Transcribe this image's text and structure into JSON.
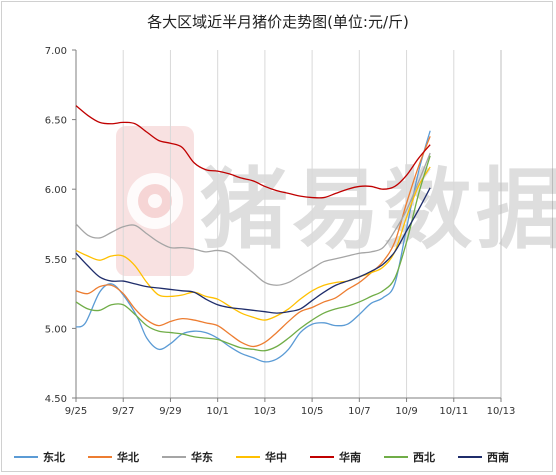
{
  "chart_data": {
    "type": "line",
    "title": "各大区域近半月猪价走势图(单位:元/斤)",
    "watermark": "猪易数据",
    "xlabel": "",
    "ylabel": "",
    "x_ticks": [
      "9/25",
      "9/27",
      "9/29",
      "10/1",
      "10/3",
      "10/5",
      "10/7",
      "10/9",
      "10/11",
      "10/13"
    ],
    "y_ticks": [
      "4.50",
      "5.00",
      "5.50",
      "6.00",
      "6.50",
      "7.00"
    ],
    "ylim": [
      4.5,
      7.0
    ],
    "grid": "vertical",
    "legend_position": "bottom",
    "series": [
      {
        "name": "东北",
        "color": "#5B9BD5",
        "points": [
          [
            0,
            5.01
          ],
          [
            0.4,
            5.04
          ],
          [
            1,
            5.26
          ],
          [
            1.5,
            5.32
          ],
          [
            2,
            5.24
          ],
          [
            2.6,
            5.08
          ],
          [
            3,
            4.93
          ],
          [
            3.5,
            4.85
          ],
          [
            4,
            4.89
          ],
          [
            4.5,
            4.96
          ],
          [
            5,
            4.98
          ],
          [
            5.5,
            4.97
          ],
          [
            6,
            4.93
          ],
          [
            6.5,
            4.87
          ],
          [
            7,
            4.82
          ],
          [
            7.5,
            4.79
          ],
          [
            8,
            4.76
          ],
          [
            8.5,
            4.78
          ],
          [
            9,
            4.85
          ],
          [
            9.5,
            4.97
          ],
          [
            10,
            5.03
          ],
          [
            10.5,
            5.04
          ],
          [
            11,
            5.02
          ],
          [
            11.5,
            5.03
          ],
          [
            12,
            5.1
          ],
          [
            12.5,
            5.18
          ],
          [
            13,
            5.22
          ],
          [
            13.5,
            5.32
          ],
          [
            14,
            5.72
          ],
          [
            14.5,
            6.12
          ],
          [
            15,
            6.42
          ]
        ]
      },
      {
        "name": "华北",
        "color": "#ED7D31",
        "points": [
          [
            0,
            5.27
          ],
          [
            0.5,
            5.25
          ],
          [
            1,
            5.3
          ],
          [
            1.5,
            5.31
          ],
          [
            2,
            5.25
          ],
          [
            2.5,
            5.14
          ],
          [
            3,
            5.06
          ],
          [
            3.5,
            5.02
          ],
          [
            4,
            5.05
          ],
          [
            4.5,
            5.07
          ],
          [
            5,
            5.06
          ],
          [
            5.5,
            5.04
          ],
          [
            6,
            5.02
          ],
          [
            6.5,
            4.96
          ],
          [
            7,
            4.9
          ],
          [
            7.5,
            4.87
          ],
          [
            8,
            4.9
          ],
          [
            8.5,
            4.97
          ],
          [
            9,
            5.05
          ],
          [
            9.5,
            5.12
          ],
          [
            10,
            5.15
          ],
          [
            10.5,
            5.19
          ],
          [
            11,
            5.22
          ],
          [
            11.5,
            5.28
          ],
          [
            12,
            5.33
          ],
          [
            12.5,
            5.4
          ],
          [
            13,
            5.48
          ],
          [
            13.5,
            5.62
          ],
          [
            14,
            5.9
          ],
          [
            14.5,
            6.16
          ],
          [
            15,
            6.38
          ]
        ]
      },
      {
        "name": "华东",
        "color": "#A5A5A5",
        "points": [
          [
            0,
            5.75
          ],
          [
            0.5,
            5.67
          ],
          [
            1,
            5.65
          ],
          [
            1.5,
            5.69
          ],
          [
            2,
            5.73
          ],
          [
            2.5,
            5.74
          ],
          [
            3,
            5.68
          ],
          [
            3.5,
            5.62
          ],
          [
            4,
            5.58
          ],
          [
            4.5,
            5.58
          ],
          [
            5,
            5.57
          ],
          [
            5.5,
            5.55
          ],
          [
            6,
            5.56
          ],
          [
            6.5,
            5.54
          ],
          [
            7,
            5.47
          ],
          [
            7.5,
            5.4
          ],
          [
            8,
            5.33
          ],
          [
            8.5,
            5.31
          ],
          [
            9,
            5.33
          ],
          [
            9.5,
            5.38
          ],
          [
            10,
            5.43
          ],
          [
            10.5,
            5.48
          ],
          [
            11,
            5.5
          ],
          [
            11.5,
            5.52
          ],
          [
            12,
            5.54
          ],
          [
            12.5,
            5.55
          ],
          [
            13,
            5.58
          ],
          [
            13.5,
            5.7
          ],
          [
            14,
            5.85
          ],
          [
            14.5,
            6.05
          ],
          [
            15,
            6.26
          ]
        ]
      },
      {
        "name": "华中",
        "color": "#FFC000",
        "points": [
          [
            0,
            5.56
          ],
          [
            0.5,
            5.52
          ],
          [
            1,
            5.49
          ],
          [
            1.5,
            5.52
          ],
          [
            2,
            5.52
          ],
          [
            2.5,
            5.45
          ],
          [
            3,
            5.33
          ],
          [
            3.5,
            5.24
          ],
          [
            4,
            5.23
          ],
          [
            4.5,
            5.24
          ],
          [
            5,
            5.26
          ],
          [
            5.5,
            5.23
          ],
          [
            6,
            5.21
          ],
          [
            6.5,
            5.16
          ],
          [
            7,
            5.11
          ],
          [
            7.5,
            5.08
          ],
          [
            8,
            5.06
          ],
          [
            8.5,
            5.09
          ],
          [
            9,
            5.14
          ],
          [
            9.5,
            5.21
          ],
          [
            10,
            5.27
          ],
          [
            10.5,
            5.31
          ],
          [
            11,
            5.33
          ],
          [
            11.5,
            5.34
          ],
          [
            12,
            5.37
          ],
          [
            12.5,
            5.4
          ],
          [
            13,
            5.44
          ],
          [
            13.5,
            5.55
          ],
          [
            14,
            5.8
          ],
          [
            14.5,
            6.02
          ],
          [
            15,
            6.16
          ]
        ]
      },
      {
        "name": "华南",
        "color": "#C00000",
        "points": [
          [
            0,
            6.6
          ],
          [
            0.5,
            6.53
          ],
          [
            1,
            6.48
          ],
          [
            1.5,
            6.47
          ],
          [
            2,
            6.48
          ],
          [
            2.5,
            6.47
          ],
          [
            3,
            6.41
          ],
          [
            3.5,
            6.35
          ],
          [
            4,
            6.33
          ],
          [
            4.5,
            6.3
          ],
          [
            5,
            6.19
          ],
          [
            5.5,
            6.14
          ],
          [
            6,
            6.13
          ],
          [
            6.5,
            6.11
          ],
          [
            7,
            6.08
          ],
          [
            7.5,
            6.06
          ],
          [
            8,
            6.02
          ],
          [
            8.5,
            5.99
          ],
          [
            9,
            5.97
          ],
          [
            9.5,
            5.95
          ],
          [
            10,
            5.94
          ],
          [
            10.5,
            5.94
          ],
          [
            11,
            5.97
          ],
          [
            11.5,
            6.0
          ],
          [
            12,
            6.02
          ],
          [
            12.5,
            6.02
          ],
          [
            13,
            6.0
          ],
          [
            13.5,
            6.02
          ],
          [
            14,
            6.1
          ],
          [
            14.5,
            6.22
          ],
          [
            15,
            6.32
          ]
        ]
      },
      {
        "name": "西北",
        "color": "#70AD47",
        "points": [
          [
            0,
            5.19
          ],
          [
            0.5,
            5.14
          ],
          [
            1,
            5.13
          ],
          [
            1.5,
            5.17
          ],
          [
            2,
            5.17
          ],
          [
            2.5,
            5.1
          ],
          [
            3,
            5.02
          ],
          [
            3.5,
            4.98
          ],
          [
            4,
            4.97
          ],
          [
            4.5,
            4.96
          ],
          [
            5,
            4.94
          ],
          [
            5.5,
            4.93
          ],
          [
            6,
            4.92
          ],
          [
            6.5,
            4.89
          ],
          [
            7,
            4.86
          ],
          [
            7.5,
            4.85
          ],
          [
            8,
            4.84
          ],
          [
            8.5,
            4.87
          ],
          [
            9,
            4.93
          ],
          [
            9.5,
            5.0
          ],
          [
            10,
            5.06
          ],
          [
            10.5,
            5.11
          ],
          [
            11,
            5.14
          ],
          [
            11.5,
            5.16
          ],
          [
            12,
            5.19
          ],
          [
            12.5,
            5.23
          ],
          [
            13,
            5.27
          ],
          [
            13.5,
            5.36
          ],
          [
            14,
            5.62
          ],
          [
            14.5,
            5.96
          ],
          [
            15,
            6.24
          ]
        ]
      },
      {
        "name": "西南",
        "color": "#1F2D6B",
        "points": [
          [
            0,
            5.54
          ],
          [
            0.5,
            5.45
          ],
          [
            1,
            5.37
          ],
          [
            1.5,
            5.34
          ],
          [
            2,
            5.34
          ],
          [
            2.5,
            5.32
          ],
          [
            3,
            5.3
          ],
          [
            3.5,
            5.29
          ],
          [
            4,
            5.28
          ],
          [
            4.5,
            5.27
          ],
          [
            5,
            5.26
          ],
          [
            5.5,
            5.21
          ],
          [
            6,
            5.17
          ],
          [
            6.5,
            5.15
          ],
          [
            7,
            5.14
          ],
          [
            7.5,
            5.13
          ],
          [
            8,
            5.12
          ],
          [
            8.5,
            5.11
          ],
          [
            9,
            5.12
          ],
          [
            9.5,
            5.14
          ],
          [
            10,
            5.2
          ],
          [
            10.5,
            5.26
          ],
          [
            11,
            5.31
          ],
          [
            11.5,
            5.34
          ],
          [
            12,
            5.37
          ],
          [
            12.5,
            5.41
          ],
          [
            13,
            5.46
          ],
          [
            13.5,
            5.55
          ],
          [
            14,
            5.7
          ],
          [
            14.5,
            5.85
          ],
          [
            15,
            6.01
          ]
        ]
      }
    ]
  }
}
